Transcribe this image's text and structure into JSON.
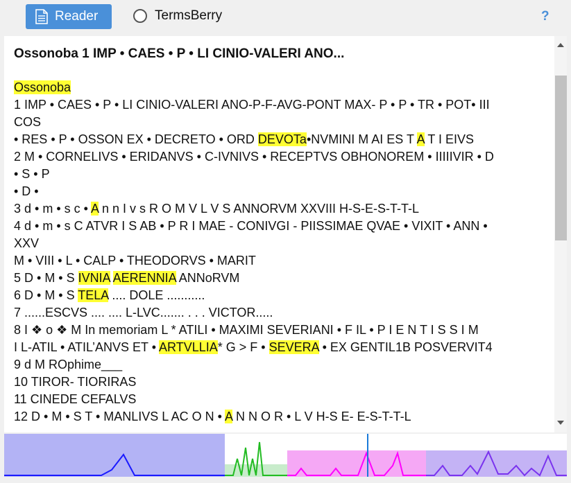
{
  "toolbar": {
    "reader_label": "Reader",
    "termsberry_label": "TermsBerry",
    "help_label": "?"
  },
  "document": {
    "title": "Ossonoba 1 IMP • CAES • P • LI CINIO-VALERI ANO...",
    "lines": [
      [
        {
          "t": "Ossonoba",
          "h": true
        }
      ],
      [
        {
          "t": "1 IMP • CAES • P • LI CINIO-VALERI ANO-P-F-AVG-PONT MAX- P • P • TR • POT• III",
          "h": false
        }
      ],
      [
        {
          "t": "COS",
          "h": false
        }
      ],
      [
        {
          "t": "• RES • P • OSSON EX • DECRETO • ORD ",
          "h": false
        },
        {
          "t": "DEVOTa",
          "h": true
        },
        {
          "t": "•NVMINI M AI ES T ",
          "h": false
        },
        {
          "t": "A",
          "h": true
        },
        {
          "t": " T I EIVS",
          "h": false
        }
      ],
      [
        {
          "t": "2 M • CORNELIVS • ERIDANVS • C-IVNIVS • RECEPTVS OBHONOREM • IIIIIVIR • D",
          "h": false
        }
      ],
      [
        {
          "t": "• S • P",
          "h": false
        }
      ],
      [
        {
          "t": "• D •",
          "h": false
        }
      ],
      [
        {
          "t": "3 d • m • s c • ",
          "h": false
        },
        {
          "t": "A",
          "h": true
        },
        {
          "t": " n n I v s R O M V L V S ANNORVM XXVIII H-S-E-S-T-T-L",
          "h": false
        }
      ],
      [
        {
          "t": "4 d • m • s C ATVR I S AB • P R I MAE - CONIVGI - PIISSIMAE QVAE • VIXIT • ANN •",
          "h": false
        }
      ],
      [
        {
          "t": "XXV",
          "h": false
        }
      ],
      [
        {
          "t": "M • VIII • L • CALP • THEODORVS • MARIT",
          "h": false
        }
      ],
      [
        {
          "t": "5 D • M • S ",
          "h": false
        },
        {
          "t": "IVNIA",
          "h": true
        },
        {
          "t": " ",
          "h": false
        },
        {
          "t": "AERENNIA",
          "h": true
        },
        {
          "t": " ANNoRVM",
          "h": false
        }
      ],
      [
        {
          "t": "6 D • M • S ",
          "h": false
        },
        {
          "t": "TELA",
          "h": true
        },
        {
          "t": " .... DOLE ...........",
          "h": false
        }
      ],
      [
        {
          "t": "7 ......ESCVS .... .... L-LVC....... . . . VICTOR.....",
          "h": false
        }
      ],
      [
        {
          "t": "8 I ❖ o ❖ M In memoriam L * ATILI • MAXIMI SEVERIANI • F IL • P I E N T I S S I M",
          "h": false
        }
      ],
      [
        {
          "t": "I L-ATIL • ATIL’ANVS ET • ",
          "h": false
        },
        {
          "t": "ARTVLLIA",
          "h": true
        },
        {
          "t": "* G > F • ",
          "h": false
        },
        {
          "t": "SEVERA",
          "h": true
        },
        {
          "t": " • EX GENTIL1B POSVERVIT4",
          "h": false
        }
      ],
      [
        {
          "t": "9 d M ROphime___",
          "h": false
        }
      ],
      [
        {
          "t": "10 TIROR- TIORIRAS",
          "h": false
        }
      ],
      [
        {
          "t": "11 CINEDE CEFALVS",
          "h": false
        }
      ],
      [
        {
          "t": "12 D • M • S T • MANLIVS L AC O N • ",
          "h": false
        },
        {
          "t": "A",
          "h": true
        },
        {
          "t": " N N O R • L V H-S E- E-S-T-T-L",
          "h": false
        }
      ]
    ]
  },
  "colors": {
    "accent": "#4a90d9",
    "highlight": "#ffff33"
  }
}
